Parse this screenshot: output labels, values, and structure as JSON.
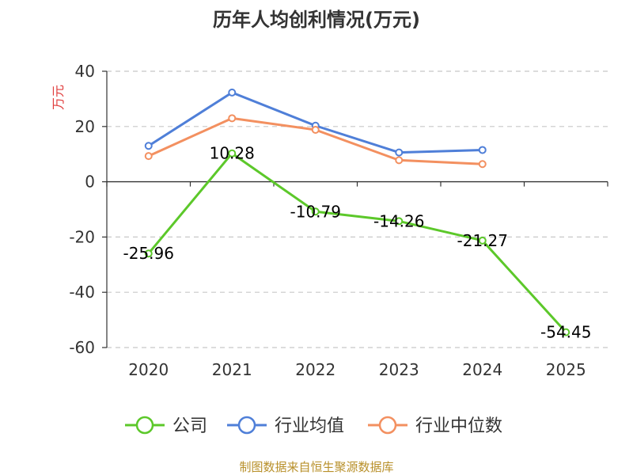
{
  "chart_data": {
    "type": "line",
    "title": "历年人均创利情况(万元)",
    "y_unit": "万元",
    "categories": [
      "2020",
      "2021",
      "2022",
      "2023",
      "2024",
      "2025"
    ],
    "ylim": [
      -60,
      40
    ],
    "yticks": [
      40,
      20,
      0,
      -20,
      -40,
      -60
    ],
    "grid": true,
    "legend_position": "bottom",
    "series": [
      {
        "name": "公司",
        "color": "#5cc82a",
        "values": [
          -25.96,
          10.28,
          -10.79,
          -14.26,
          -21.27,
          -54.45
        ],
        "labels": [
          "-25.96",
          "10.28",
          "-10.79",
          "-14.26",
          "-21.27",
          "-54.45"
        ]
      },
      {
        "name": "行业均值",
        "color": "#4f7fd8",
        "values": [
          13.0,
          32.3,
          20.3,
          10.6,
          11.5,
          null
        ]
      },
      {
        "name": "行业中位数",
        "color": "#f39060",
        "values": [
          9.3,
          23.0,
          18.8,
          7.8,
          6.4,
          null
        ]
      }
    ],
    "source": "制图数据来自恒生聚源数据库",
    "source_color": "#b8902a",
    "unit_color": "#e03c3c"
  }
}
